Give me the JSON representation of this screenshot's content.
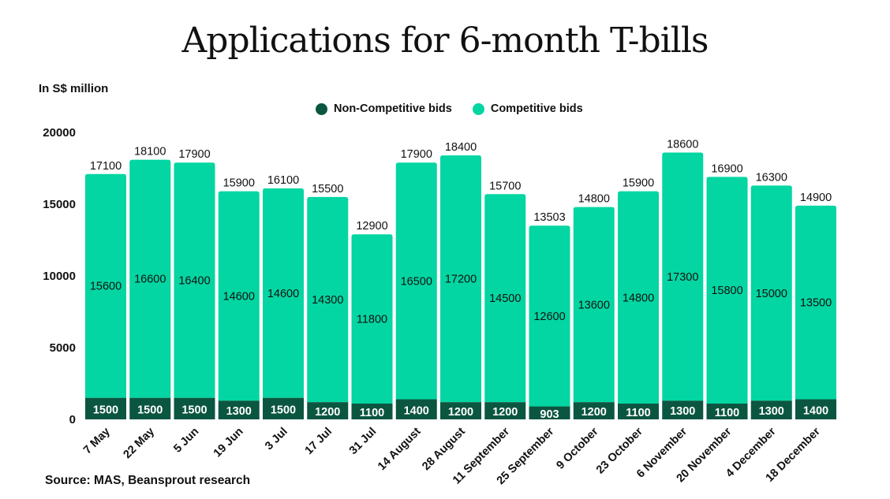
{
  "chart_data": {
    "type": "bar",
    "stacked": true,
    "title": "Applications for 6-month T-bills",
    "ylabel": "In S$ million",
    "xlabel": "",
    "ylim": [
      0,
      20000
    ],
    "yticks": [
      0,
      5000,
      10000,
      15000,
      20000
    ],
    "grid": false,
    "legend_placement": "top-center",
    "categories": [
      "7 May",
      "22 May",
      "5 Jun",
      "19 Jun",
      "3 Jul",
      "17 Jul",
      "31 Jul",
      "14 August",
      "28 August",
      "11 September",
      "25 September",
      "9 October",
      "23 October",
      "6 November",
      "20 November",
      "4 December",
      "18 December"
    ],
    "series": [
      {
        "name": "Non-Competitive bids",
        "color": "#0b5640",
        "values": [
          1500,
          1500,
          1500,
          1300,
          1500,
          1200,
          1100,
          1400,
          1200,
          1200,
          903,
          1200,
          1100,
          1300,
          1100,
          1300,
          1400
        ]
      },
      {
        "name": "Competitive bids",
        "color": "#03d6a2",
        "values": [
          15600,
          16600,
          16400,
          14600,
          14600,
          14300,
          11800,
          16500,
          17200,
          14500,
          12600,
          13600,
          14800,
          17300,
          15800,
          15000,
          13500
        ]
      }
    ],
    "totals": [
      17100,
      18100,
      17900,
      15900,
      16100,
      15500,
      12900,
      17900,
      18400,
      15700,
      13503,
      14800,
      15900,
      18600,
      16900,
      16300,
      14900
    ],
    "source": "Source: MAS, Beansprout research"
  }
}
